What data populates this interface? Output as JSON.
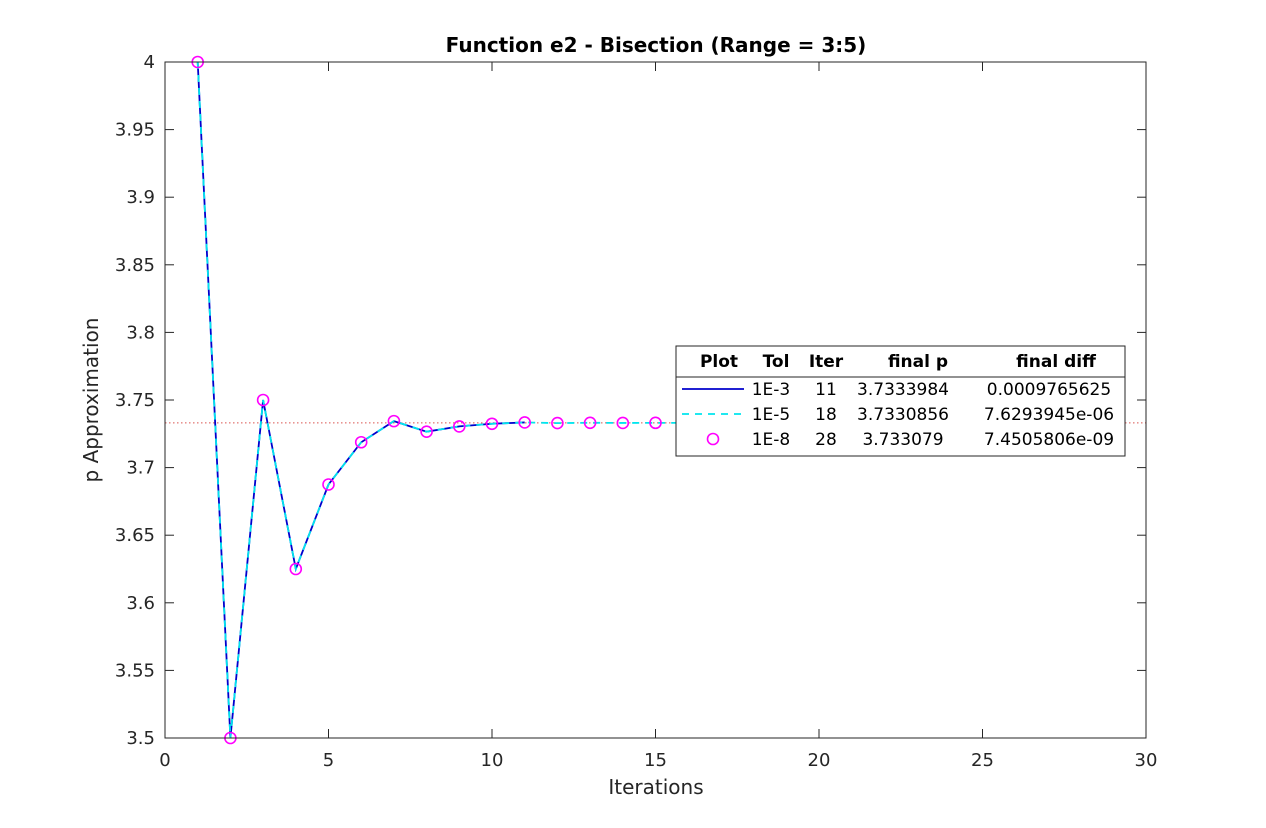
{
  "chart_data": {
    "type": "line",
    "title": "Function e2 - Bisection (Range = 3:5)",
    "xlabel": "Iterations",
    "ylabel": "p Approximation",
    "xlim": [
      0,
      30
    ],
    "ylim": [
      3.5,
      4
    ],
    "xticks": [
      "0",
      "5",
      "10",
      "15",
      "20",
      "25",
      "30"
    ],
    "yticks": [
      "3.5",
      "3.55",
      "3.6",
      "3.65",
      "3.7",
      "3.75",
      "3.8",
      "3.85",
      "3.9",
      "3.95",
      "4"
    ],
    "grid": false,
    "reference_line": {
      "y": 3.733079,
      "color": "#d9534f",
      "style": "dotted"
    },
    "series": [
      {
        "color": "#0000cc",
        "style": "solid",
        "x": [
          1,
          2,
          3,
          4,
          5,
          6,
          7,
          8,
          9,
          10,
          11
        ],
        "y": [
          4.0,
          3.5,
          3.75,
          3.625,
          3.6875,
          3.71875,
          3.734375,
          3.7265625,
          3.73046875,
          3.732421875,
          3.7333984
        ]
      },
      {
        "color": "#00e5ee",
        "style": "dashed",
        "x": [
          1,
          2,
          3,
          4,
          5,
          6,
          7,
          8,
          9,
          10,
          11,
          12,
          13,
          14,
          15,
          16,
          17,
          18
        ],
        "y": [
          4.0,
          3.5,
          3.75,
          3.625,
          3.6875,
          3.71875,
          3.734375,
          3.7265625,
          3.73046875,
          3.732421875,
          3.7333984,
          3.73291,
          3.73315,
          3.73303,
          3.73309,
          3.73306,
          3.733078,
          3.7330856
        ]
      },
      {
        "color": "#ff00ff",
        "style": "markers",
        "x": [
          1,
          2,
          3,
          4,
          5,
          6,
          7,
          8,
          9,
          10,
          11,
          12,
          13,
          14,
          15,
          16,
          17,
          18,
          19,
          20,
          21,
          22,
          23,
          24,
          25,
          26,
          27,
          28
        ],
        "y": [
          4.0,
          3.5,
          3.75,
          3.625,
          3.6875,
          3.71875,
          3.734375,
          3.7265625,
          3.73046875,
          3.732421875,
          3.7333984,
          3.73291,
          3.73315,
          3.73303,
          3.73309,
          3.73306,
          3.733078,
          3.7330856,
          3.733082,
          3.73308,
          3.733079,
          3.733079,
          3.733079,
          3.733079,
          3.733079,
          3.733079,
          3.733079,
          3.733079
        ]
      }
    ],
    "legend": {
      "placement": "right-center",
      "headers": [
        "Plot",
        "Tol",
        "Iter",
        "final p",
        "final diff"
      ],
      "rows": [
        {
          "tol": "1E-3",
          "iter": "11",
          "final_p": "3.7333984",
          "final_diff": "0.0009765625"
        },
        {
          "tol": "1E-5",
          "iter": "18",
          "final_p": "3.7330856",
          "final_diff": "7.6293945e-06"
        },
        {
          "tol": "1E-8",
          "iter": "28",
          "final_p": "3.733079",
          "final_diff": "7.4505806e-09"
        }
      ]
    }
  }
}
